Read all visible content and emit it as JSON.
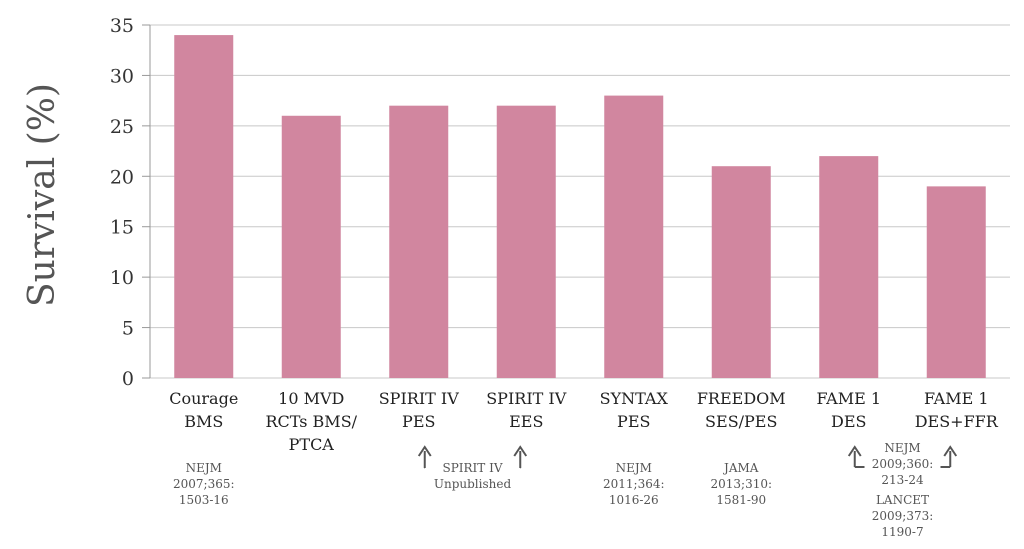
{
  "chart_data": {
    "type": "bar",
    "ylabel": "Survival (%)",
    "xlabel": "",
    "ylim": [
      0,
      35
    ],
    "yticks": [
      0,
      5,
      10,
      15,
      20,
      25,
      30,
      35
    ],
    "grid": true,
    "bar_color": "#d1869f",
    "categories": [
      [
        "Courage",
        "BMS"
      ],
      [
        "10 MVD",
        "RCTs BMS/",
        "PTCA"
      ],
      [
        "SPIRIT IV",
        "PES"
      ],
      [
        "SPIRIT IV",
        "EES"
      ],
      [
        "SYNTAX",
        "PES"
      ],
      [
        "FREEDOM",
        "SES/PES"
      ],
      [
        "FAME 1",
        "DES"
      ],
      [
        "FAME 1",
        "DES+FFR"
      ]
    ],
    "values": [
      34,
      26,
      27,
      27,
      28,
      21,
      22,
      19
    ],
    "references": [
      [
        "NEJM",
        "2007;365:",
        "1503-16"
      ],
      [],
      [],
      [],
      [
        "NEJM",
        "2011;364:",
        "1016-26"
      ],
      [
        "JAMA",
        "2013;310:",
        "1581-90"
      ],
      [],
      []
    ],
    "shared_references": [
      {
        "bars": [
          2,
          3
        ],
        "lines": [
          "SPIRIT IV",
          "Unpublished"
        ]
      },
      {
        "bars": [
          6,
          7
        ],
        "lines": [
          "NEJM",
          "2009;360:",
          "213-24",
          "LANCET",
          "2009;373:",
          "1190-7"
        ]
      }
    ]
  }
}
